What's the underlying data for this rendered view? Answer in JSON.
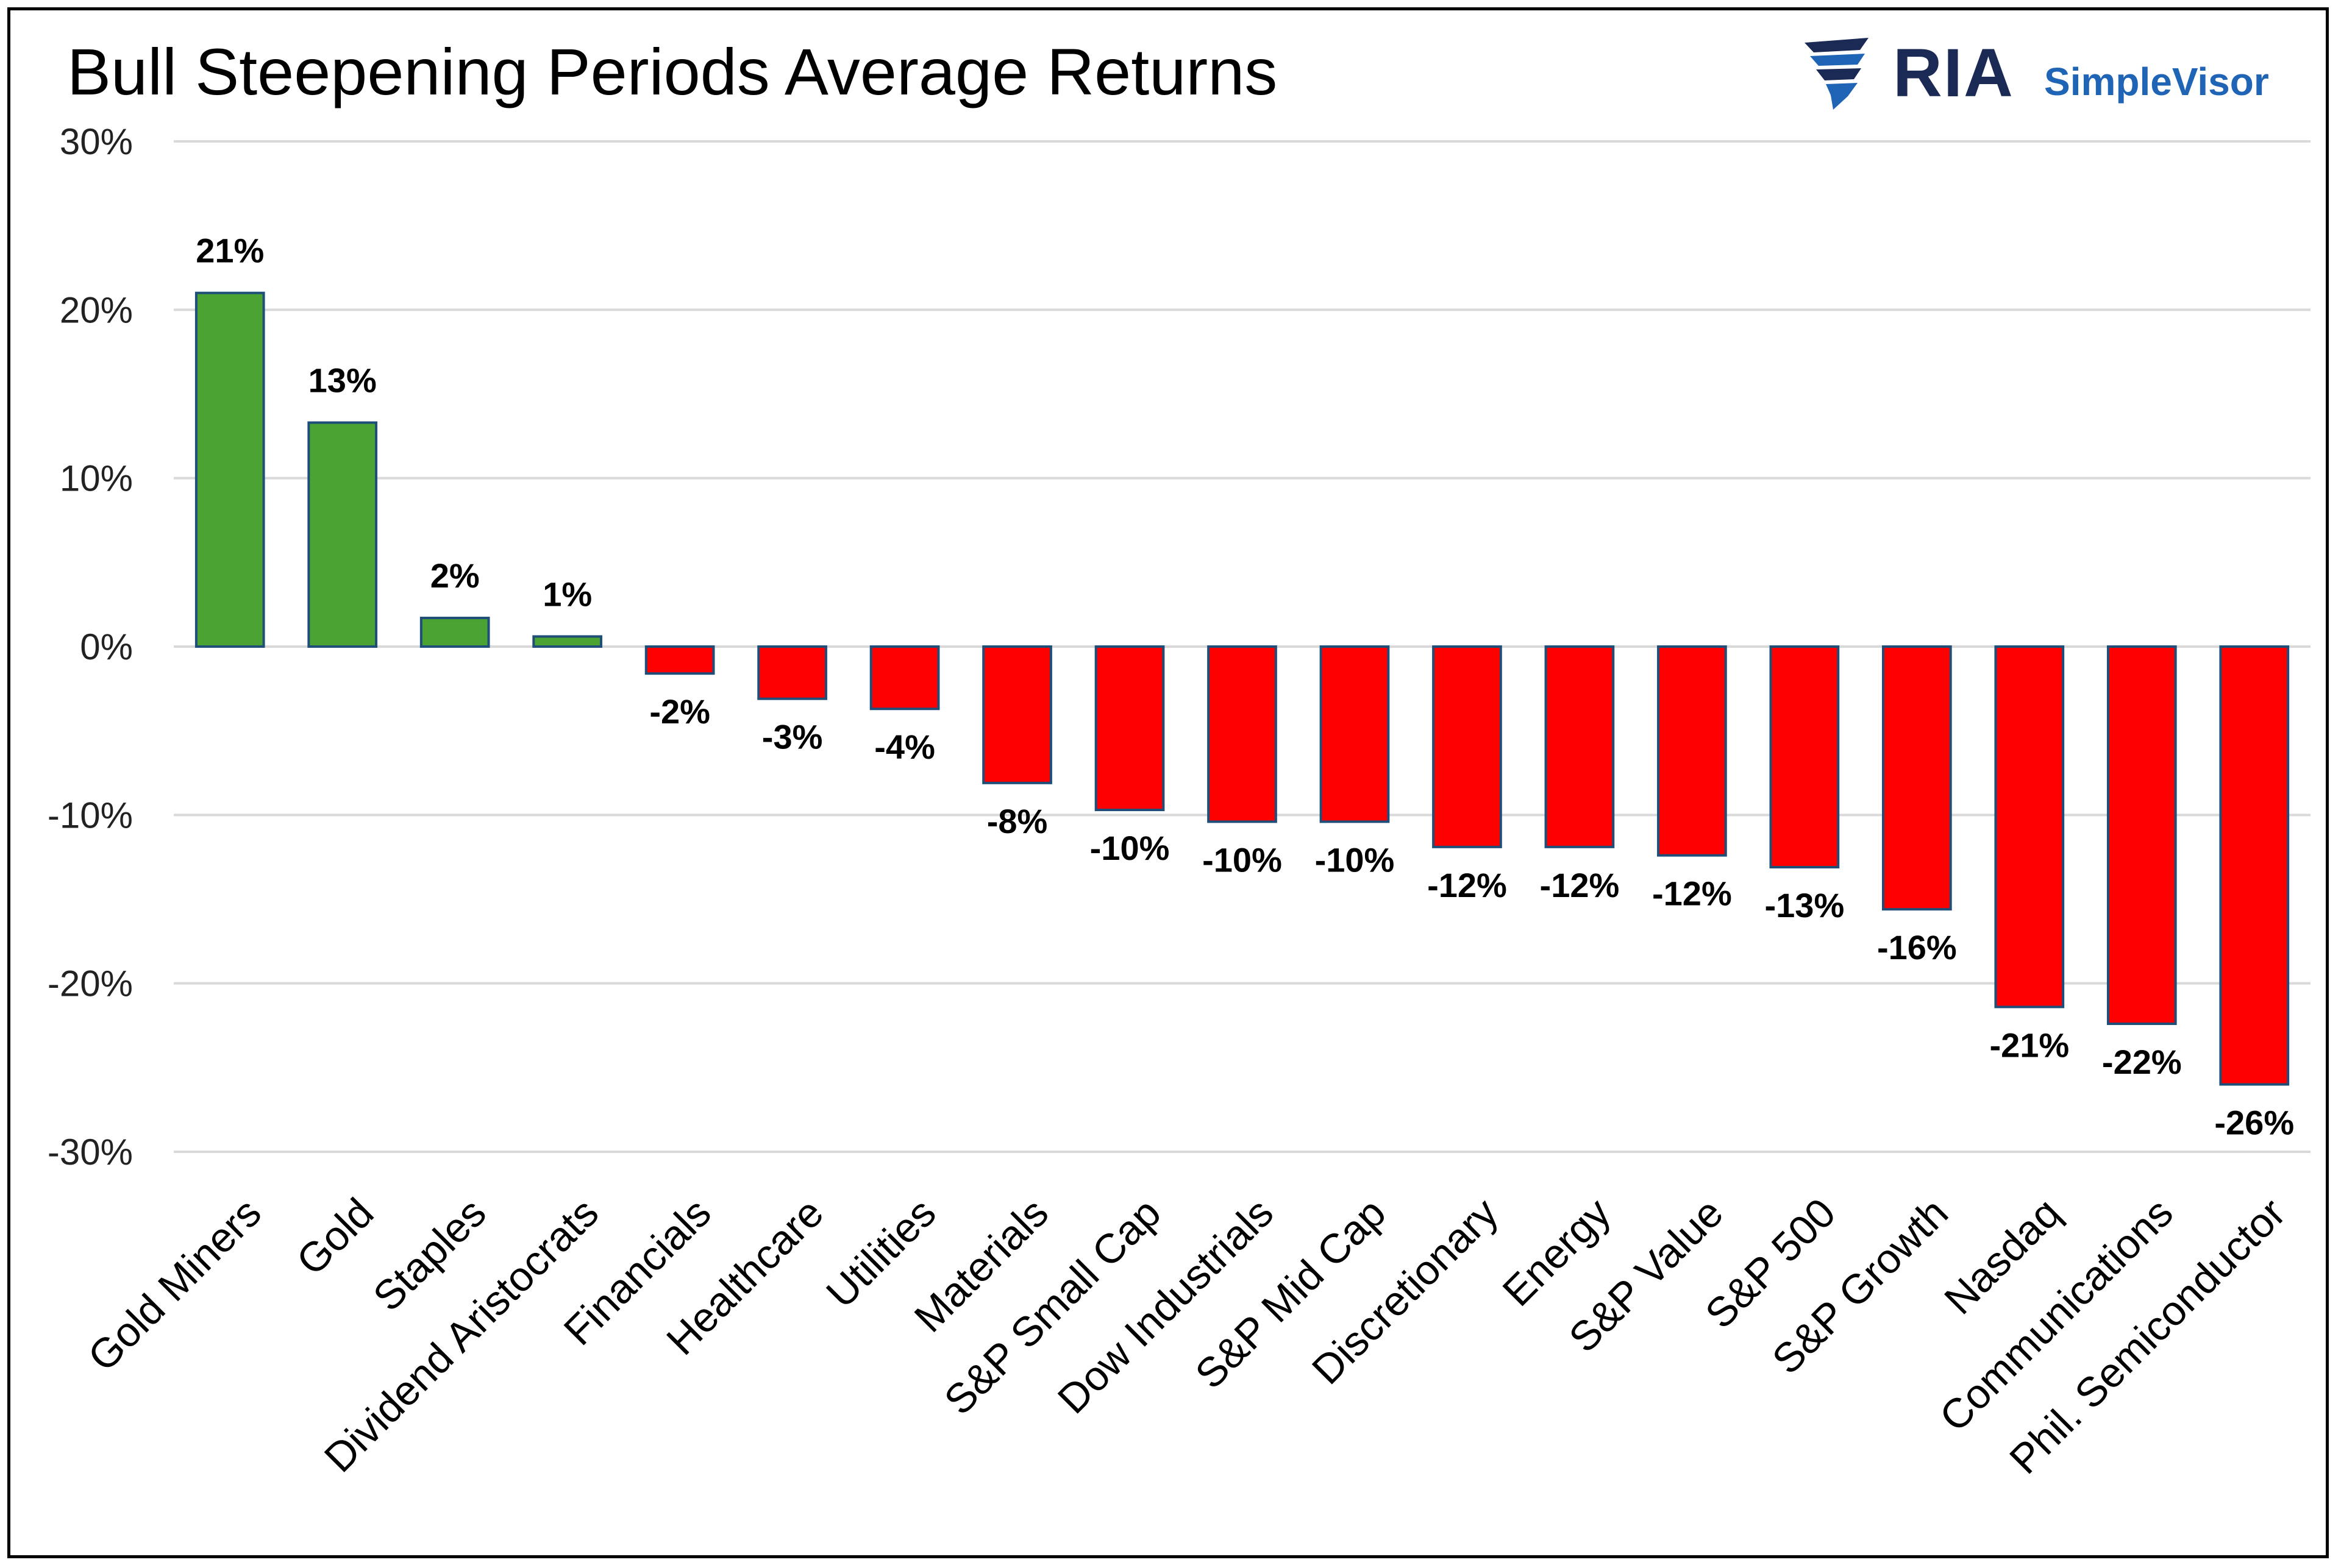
{
  "chart_data": {
    "type": "bar",
    "title": "Bull Steepening Periods Average Returns",
    "xlabel": "",
    "ylabel": "",
    "ylim": [
      -30,
      30
    ],
    "yticks": [
      30,
      20,
      10,
      0,
      -10,
      -20,
      -30
    ],
    "ytick_labels": [
      "30%",
      "20%",
      "10%",
      "0%",
      "-10%",
      "-20%",
      "-30%"
    ],
    "grid": true,
    "legend": "none",
    "categories": [
      "Gold Miners",
      "Gold",
      "Staples",
      "Dividend Aristocrats",
      "Financials",
      "Healthcare",
      "Utilities",
      "Materials",
      "S&P Small Cap",
      "Dow Industrials",
      "S&P Mid Cap",
      "Discretionary",
      "Energy",
      "S&P Value",
      "S&P 500",
      "S&P Growth",
      "Nasdaq",
      "Communications",
      "Phil. Semiconductor"
    ],
    "values": [
      21,
      13.3,
      1.7,
      0.6,
      -1.6,
      -3.1,
      -3.7,
      -8.1,
      -9.7,
      -10.4,
      -10.4,
      -11.9,
      -11.9,
      -12.4,
      -13.1,
      -15.6,
      -21.4,
      -22.4,
      -26
    ],
    "data_labels": [
      "21%",
      "13%",
      "2%",
      "1%",
      "-2%",
      "-3%",
      "-4%",
      "-8%",
      "-10%",
      "-10%",
      "-10%",
      "-12%",
      "-12%",
      "-12%",
      "-13%",
      "-16%",
      "-21%",
      "-22%",
      "-26%"
    ],
    "colors": {
      "positive": "#4aa332",
      "negative": "#ff0000",
      "edge": "#1f4e79",
      "grid": "#d9d9d9"
    }
  },
  "logo": {
    "brand": "RIA",
    "product": "SimpleVisor"
  }
}
